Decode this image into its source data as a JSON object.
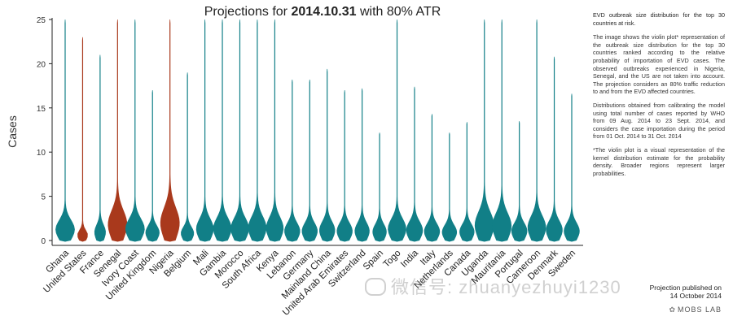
{
  "chart_data": {
    "type": "violin",
    "title_prefix": "Projections for ",
    "title_bold": "2014.10.31",
    "title_suffix": " with 80% ATR",
    "ylabel": "Cases",
    "ylim": [
      0,
      25
    ],
    "yticks": [
      0,
      5,
      10,
      15,
      20,
      25
    ],
    "categories": [
      "Ghana",
      "United States",
      "France",
      "Senegal",
      "Ivory Coast",
      "United Kingdom",
      "Nigeria",
      "Belgium",
      "Mali",
      "Gambia",
      "Morocco",
      "South Africa",
      "Kenya",
      "Lebanon",
      "Germany",
      "Mainland China",
      "United Arab Emirates",
      "Switzerland",
      "Spain",
      "Togo",
      "India",
      "Italy",
      "Netherlands",
      "Canada",
      "Uganda",
      "Mauritania",
      "Portugal",
      "Cameroon",
      "Denmark",
      "Sweden"
    ],
    "max_cases": [
      25,
      23,
      21,
      25,
      25,
      17,
      25,
      19,
      25,
      25,
      25,
      25,
      25,
      18.2,
      18.2,
      19.4,
      17,
      17.2,
      12.2,
      25,
      17.4,
      14.3,
      12.2,
      13.4,
      25,
      25,
      13.5,
      25,
      20.8,
      16.6
    ],
    "bulge_width": [
      1.0,
      0.5,
      0.55,
      1.0,
      1.0,
      0.7,
      1.0,
      0.65,
      0.9,
      0.95,
      0.95,
      0.95,
      0.9,
      0.8,
      0.8,
      0.8,
      0.8,
      0.75,
      0.7,
      0.95,
      0.85,
      0.8,
      0.75,
      0.75,
      1.0,
      1.0,
      0.8,
      0.95,
      0.85,
      0.8
    ],
    "bulge_height": [
      3.0,
      1.5,
      2.3,
      4.4,
      3.2,
      2.2,
      4.8,
      2.0,
      3.2,
      3.3,
      3.3,
      3.5,
      3.4,
      2.6,
      2.6,
      2.8,
      2.6,
      2.6,
      2.4,
      3.2,
      2.8,
      2.5,
      2.3,
      2.4,
      4.2,
      4.0,
      2.6,
      3.6,
      2.9,
      2.6
    ],
    "highlighted": [
      "United States",
      "Senegal",
      "Nigeria"
    ],
    "colors": {
      "default": "#117f87",
      "highlight": "#a9391c",
      "axis": "#222222"
    }
  },
  "sidebar": {
    "heading": "EVD outbreak size distribution for the top 30 countries at risk.",
    "para1": "The image shows the violin plot* representation of the outbreak size distribution for the top 30 countries ranked according to the relative probability of importation of EVD cases. The observed outbreaks experienced in Nigeria, Senegal, and the US are not taken into account. The projection considers an 80% traffic reduction to and from the EVD affected countries.",
    "para2": "Distributions obtained from calibrating the model using total number of cases reported by WHO from 09 Aug. 2014 to 23 Sept. 2014, and considers the case importation during the period from 01 Oct. 2014 to 31 Oct. 2014",
    "para3": "*The violin plot is a visual representation of the kernel distribution estimate for the probability density. Broader regions represent larger probabilities."
  },
  "footer": {
    "line1": "Projection published on",
    "line2": "14 October 2014",
    "logo": "MOBS LAB",
    "logo_icon": "mobs-lab-logo-icon"
  },
  "watermark": {
    "text": "微信号: zhuanyezhuyi1230",
    "icon": "wechat-icon"
  }
}
